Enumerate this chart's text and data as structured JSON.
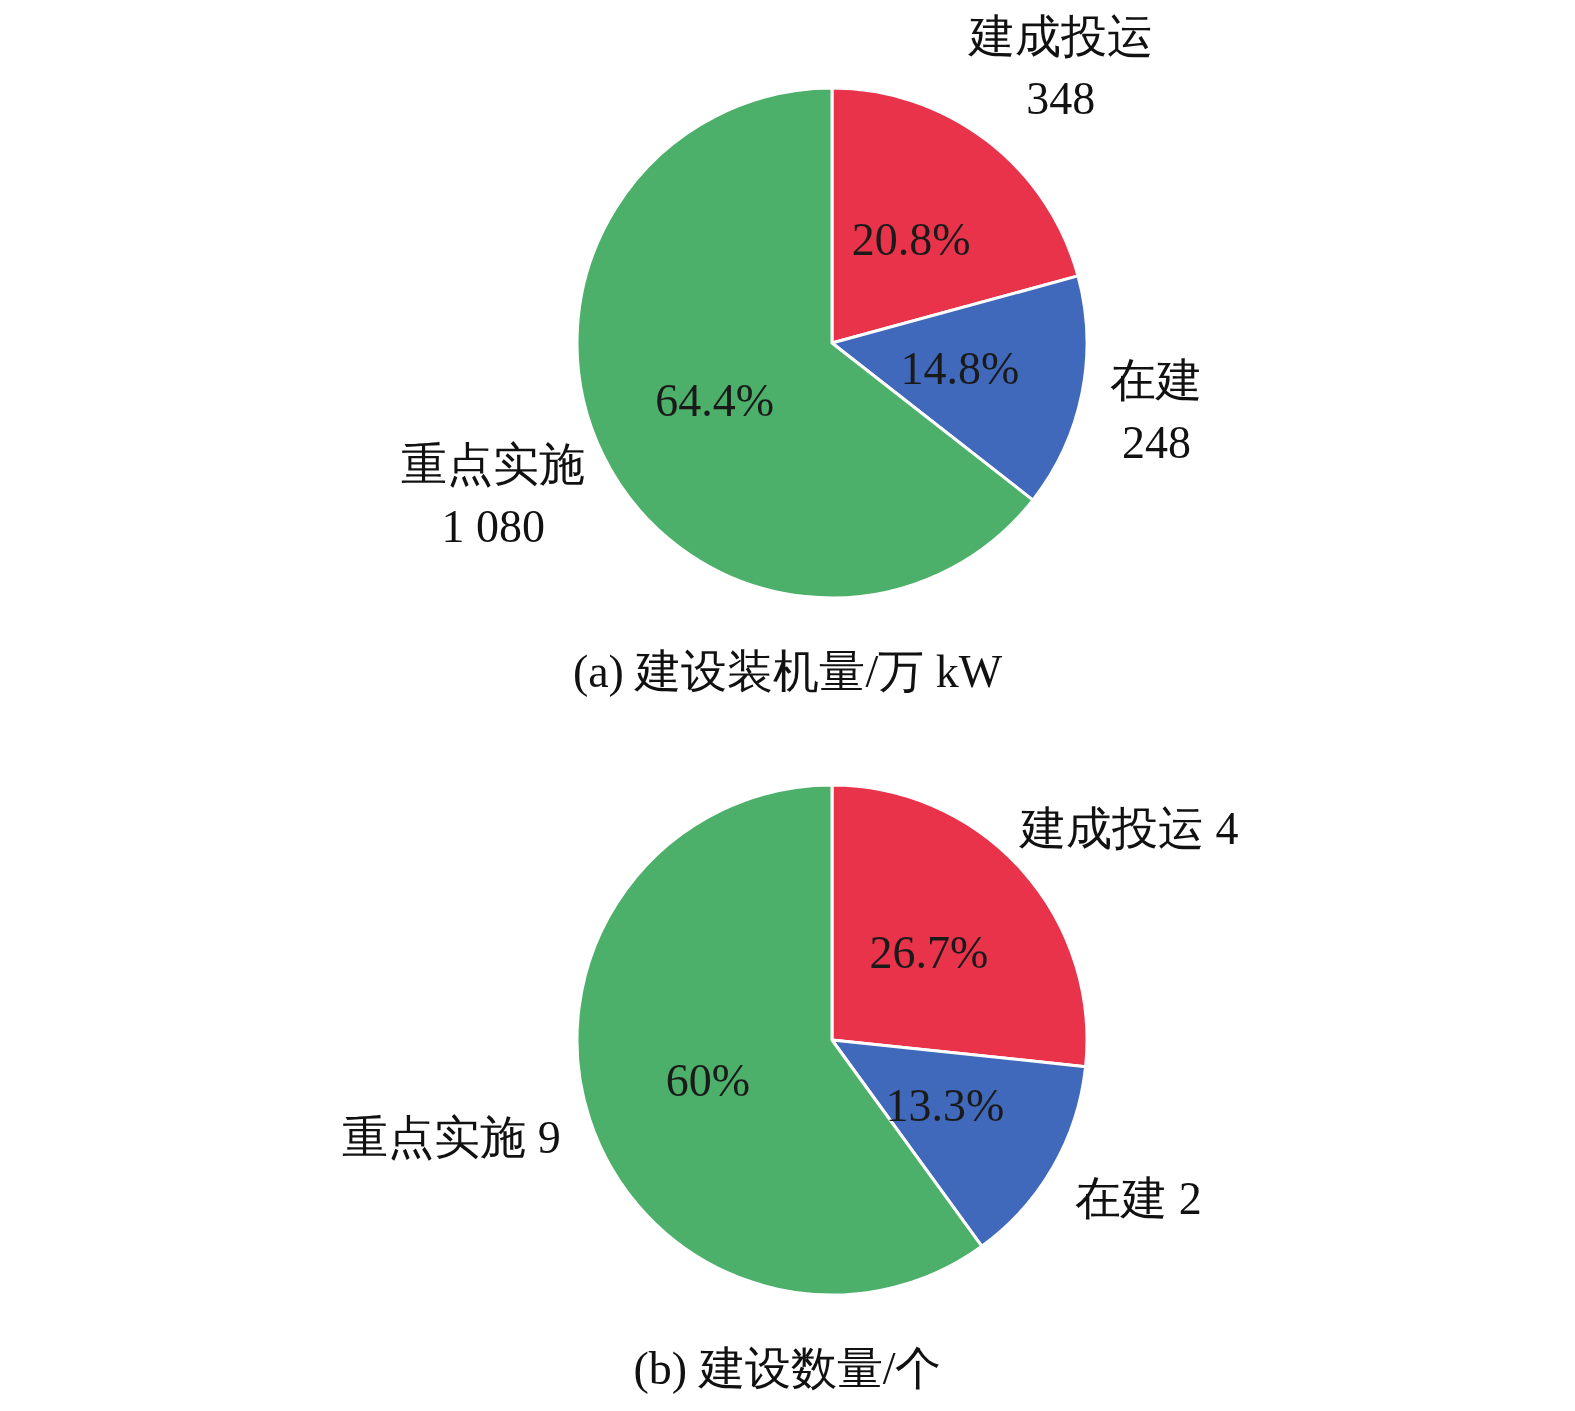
{
  "chart_data": [
    {
      "type": "pie",
      "title": "(a) 建设装机量/万 kW",
      "categories": [
        "建成投运",
        "在建",
        "重点实施"
      ],
      "values": [
        348,
        248,
        1080
      ],
      "colors": [
        "#e8334a",
        "#4169bb",
        "#4caf6a"
      ],
      "value_labels": [
        "348",
        "248",
        "1 080"
      ],
      "annotations": [
        "20.8%",
        "14.8%",
        "64.4%"
      ]
    },
    {
      "type": "pie",
      "title": "(b) 建设数量/个",
      "categories": [
        "建成投运",
        "在建",
        "重点实施"
      ],
      "values": [
        4,
        2,
        9
      ],
      "colors": [
        "#e8334a",
        "#4169bb",
        "#4caf6a"
      ],
      "value_labels": [
        "4",
        "2",
        "9"
      ],
      "annotations": [
        "26.7%",
        "13.3%",
        "60%"
      ]
    }
  ]
}
